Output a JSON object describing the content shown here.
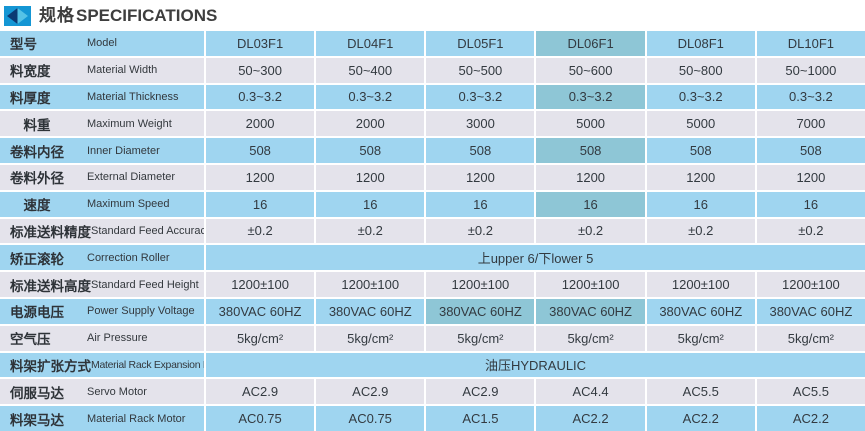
{
  "header": {
    "title_zh": "规格",
    "title_en": "SPECIFICATIONS",
    "icon": "diamond-arrows-icon"
  },
  "colors": {
    "row_blue": "#9fd5f0",
    "row_gray": "#e4e3eb",
    "highlight": "#8ec6d6",
    "icon_bg": "#1496d4",
    "icon_left_triangle": "#0b3a74",
    "icon_right_triangle": "#55c2e6",
    "title_text": "#3e3e3e",
    "cell_text": "#333a40"
  },
  "columns": [
    "DL03F1",
    "DL04F1",
    "DL05F1",
    "DL06F1",
    "DL08F1",
    "DL10F1"
  ],
  "rows": [
    {
      "zh": "型号",
      "en": "Model",
      "values": [
        "DL03F1",
        "DL04F1",
        "DL05F1",
        "DL06F1",
        "DL08F1",
        "DL10F1"
      ],
      "highlight": [
        3
      ]
    },
    {
      "zh": "料宽度",
      "en": "Material Width",
      "values": [
        "50~300",
        "50~400",
        "50~500",
        "50~600",
        "50~800",
        "50~1000"
      ]
    },
    {
      "zh": "料厚度",
      "en": "Material Thickness",
      "values": [
        "0.3~3.2",
        "0.3~3.2",
        "0.3~3.2",
        "0.3~3.2",
        "0.3~3.2",
        "0.3~3.2"
      ],
      "highlight": [
        3
      ]
    },
    {
      "zh": "　料重",
      "en": "Maximum Weight",
      "values": [
        "2000",
        "2000",
        "3000",
        "5000",
        "5000",
        "7000"
      ]
    },
    {
      "zh": "卷料内径",
      "en": "Inner Diameter",
      "values": [
        "508",
        "508",
        "508",
        "508",
        "508",
        "508"
      ],
      "highlight": [
        3
      ]
    },
    {
      "zh": "卷料外径",
      "en": "External Diameter",
      "values": [
        "1200",
        "1200",
        "1200",
        "1200",
        "1200",
        "1200"
      ]
    },
    {
      "zh": "　速度",
      "en": "Maximum Speed",
      "values": [
        "16",
        "16",
        "16",
        "16",
        "16",
        "16"
      ],
      "highlight": [
        3
      ]
    },
    {
      "zh": "标准送料精度",
      "en": "Standard Feed Accuracy",
      "values": [
        "±0.2",
        "±0.2",
        "±0.2",
        "±0.2",
        "±0.2",
        "±0.2"
      ]
    },
    {
      "zh": "矫正滚轮",
      "en": "Correction Roller",
      "merged": "上upper 6/下lower 5"
    },
    {
      "zh": "标准送料高度",
      "en": "Standard Feed Height",
      "values": [
        "1200±100",
        "1200±100",
        "1200±100",
        "1200±100",
        "1200±100",
        "1200±100"
      ]
    },
    {
      "zh": "电源电压",
      "en": "Power Supply Voltage",
      "values": [
        "380VAC 60HZ",
        "380VAC 60HZ",
        "380VAC 60HZ",
        "380VAC 60HZ",
        "380VAC 60HZ",
        "380VAC 60HZ"
      ],
      "highlight": [
        2,
        3
      ]
    },
    {
      "zh": "空气压",
      "en": "Air Pressure",
      "values": [
        "5kg/cm²",
        "5kg/cm²",
        "5kg/cm²",
        "5kg/cm²",
        "5kg/cm²",
        "5kg/cm²"
      ]
    },
    {
      "zh": "料架扩张方式",
      "en": "Material Rack Expansion Mode",
      "merged": "油压HYDRAULIC"
    },
    {
      "zh": "伺服马达",
      "en": "Servo Motor",
      "values": [
        "AC2.9",
        "AC2.9",
        "AC2.9",
        "AC4.4",
        "AC5.5",
        "AC5.5"
      ]
    },
    {
      "zh": "料架马达",
      "en": "Material Rack Motor",
      "values": [
        "AC0.75",
        "AC0.75",
        "AC1.5",
        "AC2.2",
        "AC2.2",
        "AC2.2"
      ]
    }
  ]
}
